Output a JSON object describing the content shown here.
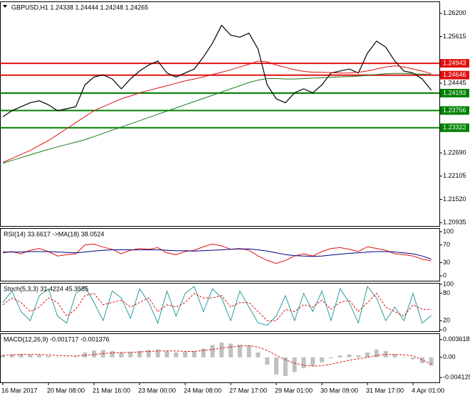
{
  "chart_data": [
    {
      "type": "line",
      "title": "GBPUSD,H1  1.24338 1.24444 1.24248 1.24265",
      "ylim": [
        1.2085,
        1.265
      ],
      "yticks": [
        {
          "value": 1.262,
          "label": "1.26200"
        },
        1.25615,
        1.24445,
        {
          "value": 1.2269,
          "label": "1.22690"
        },
        1.22105,
        {
          "value": 1.2152,
          "label": "1.21520"
        },
        1.20935
      ],
      "levels": [
        {
          "value": 1.24943,
          "color": "#e01010"
        },
        {
          "value": 1.24646,
          "color": "#e01010"
        },
        {
          "value": 1.24193,
          "color": "#008000"
        },
        {
          "value": 1.23756,
          "color": "#008000"
        },
        {
          "value": 1.23322,
          "color": "#008000"
        }
      ],
      "series": [
        {
          "color": "#000000",
          "values": [
            1.236,
            1.2375,
            1.2385,
            1.2395,
            1.24,
            1.239,
            1.2375,
            1.238,
            1.2385,
            1.244,
            1.246,
            1.2465,
            1.2455,
            1.243,
            1.2455,
            1.2475,
            1.249,
            1.25,
            1.247,
            1.246,
            1.247,
            1.248,
            1.251,
            1.2545,
            1.259,
            1.2565,
            1.256,
            1.257,
            1.253,
            1.244,
            1.2405,
            1.2395,
            1.242,
            1.243,
            1.242,
            1.244,
            1.247,
            1.2475,
            1.248,
            1.247,
            1.252,
            1.255,
            1.2535,
            1.25,
            1.2475,
            1.247,
            1.2455,
            1.2427
          ]
        },
        {
          "color": "#e01010",
          "values": [
            1.2245,
            1.2255,
            1.2265,
            1.2275,
            1.2288,
            1.23,
            1.2315,
            1.233,
            1.2345,
            1.236,
            1.2375,
            1.2385,
            1.2395,
            1.2405,
            1.2412,
            1.242,
            1.2426,
            1.2432,
            1.2438,
            1.2444,
            1.245,
            1.2455,
            1.246,
            1.2466,
            1.2472,
            1.2478,
            1.2485,
            1.2492,
            1.25,
            1.2498,
            1.249,
            1.2484,
            1.2478,
            1.2474,
            1.2472,
            1.2472,
            1.2471,
            1.247,
            1.247,
            1.2472,
            1.2475,
            1.248,
            1.2485,
            1.2488,
            1.2485,
            1.248,
            1.2475,
            1.2468
          ]
        },
        {
          "color": "#1a7a1a",
          "values": [
            1.2243,
            1.225,
            1.2257,
            1.2264,
            1.2271,
            1.2278,
            1.2284,
            1.229,
            1.2296,
            1.2302,
            1.231,
            1.2318,
            1.2326,
            1.2334,
            1.2342,
            1.235,
            1.2358,
            1.2366,
            1.2374,
            1.2382,
            1.239,
            1.2398,
            1.2406,
            1.2414,
            1.2422,
            1.243,
            1.2438,
            1.2446,
            1.2452,
            1.2456,
            1.2456,
            1.2455,
            1.2455,
            1.2456,
            1.2457,
            1.2458,
            1.2459,
            1.246,
            1.2461,
            1.2462,
            1.2464,
            1.2466,
            1.2468,
            1.2469,
            1.2469,
            1.2468,
            1.2467,
            1.2466
          ]
        }
      ]
    },
    {
      "type": "line",
      "title": "RSI(14) 33.6617 ->MA(18) 38.0524",
      "ylim": [
        -11,
        108
      ],
      "yticks": [
        100,
        70,
        30,
        0
      ],
      "series": [
        {
          "color": "#e01010",
          "values": [
            52,
            55,
            50,
            58,
            62,
            55,
            45,
            48,
            50,
            70,
            72,
            65,
            60,
            50,
            58,
            62,
            60,
            64,
            52,
            48,
            55,
            58,
            66,
            72,
            68,
            60,
            62,
            58,
            45,
            35,
            28,
            35,
            45,
            50,
            45,
            55,
            62,
            64,
            60,
            55,
            66,
            62,
            58,
            50,
            48,
            45,
            38,
            34
          ]
        },
        {
          "color": "#000080",
          "values": [
            54,
            54,
            54,
            55,
            55,
            55,
            54,
            53,
            52,
            54,
            56,
            58,
            59,
            59,
            59,
            59,
            59,
            59,
            58,
            57,
            57,
            56,
            57,
            58,
            59,
            60,
            61,
            61,
            59,
            56,
            52,
            48,
            46,
            45,
            44,
            45,
            47,
            49,
            51,
            52,
            54,
            55,
            55,
            54,
            52,
            50,
            45,
            38
          ]
        }
      ]
    },
    {
      "type": "line",
      "title": "Stoch(5,3,3) 31.4224 45.3585",
      "ylim": [
        -3,
        103
      ],
      "yticks": [
        100,
        80,
        20,
        0
      ],
      "series": [
        {
          "color": "#2a9d9d",
          "values": [
            60,
            85,
            40,
            20,
            75,
            90,
            30,
            15,
            80,
            95,
            60,
            20,
            85,
            70,
            25,
            90,
            60,
            15,
            85,
            30,
            80,
            95,
            40,
            90,
            70,
            20,
            85,
            50,
            15,
            10,
            30,
            75,
            20,
            80,
            40,
            85,
            20,
            90,
            60,
            15,
            95,
            70,
            20,
            50,
            20,
            80,
            15,
            31
          ]
        },
        {
          "color": "#e01010",
          "dashed": true,
          "values": [
            55,
            70,
            60,
            40,
            50,
            70,
            60,
            30,
            45,
            75,
            80,
            55,
            60,
            65,
            50,
            60,
            70,
            40,
            55,
            50,
            60,
            80,
            70,
            70,
            75,
            50,
            60,
            60,
            40,
            20,
            20,
            45,
            40,
            55,
            50,
            65,
            45,
            60,
            65,
            40,
            60,
            80,
            50,
            40,
            30,
            55,
            45,
            45
          ]
        }
      ]
    },
    {
      "type": "bar",
      "title": "MACD(12,26,9) -0.001717 -0.001376",
      "ylim": [
        -0.0051,
        0.0049
      ],
      "yticks": [
        0.003618,
        {
          "value": 0,
          "label": "0.00"
        },
        -0.004125
      ],
      "categories": [
        "16 Mar 2017",
        null,
        null,
        null,
        null,
        "20 Mar 08:00",
        null,
        null,
        null,
        null,
        "21 Mar 16:00",
        null,
        null,
        null,
        null,
        "23 Mar 00:00",
        null,
        null,
        null,
        null,
        "24 Mar 08:00",
        null,
        null,
        null,
        null,
        "27 Mar 17:00",
        null,
        null,
        null,
        null,
        "29 Mar 01:00",
        null,
        null,
        null,
        null,
        "30 Mar 09:00",
        null,
        null,
        null,
        null,
        "31 Mar 17:00",
        null,
        null,
        null,
        null,
        "4 Apr 01:00",
        null,
        null
      ],
      "series": [
        {
          "type": "bar",
          "color": "#c0c0c0",
          "values": [
            0.0005,
            0.0006,
            0.0007,
            0.0006,
            0.0005,
            0.0003,
            0.0001,
            0.0,
            0.0002,
            0.001,
            0.0014,
            0.0015,
            0.0013,
            0.001,
            0.0011,
            0.0013,
            0.0015,
            0.0016,
            0.0013,
            0.001,
            0.0011,
            0.0013,
            0.0018,
            0.0025,
            0.003,
            0.0028,
            0.0026,
            0.0024,
            0.001,
            -0.0015,
            -0.0035,
            -0.0038,
            -0.003,
            -0.0022,
            -0.0018,
            -0.001,
            -0.0002,
            0.0004,
            0.0006,
            0.0004,
            0.001,
            0.0016,
            0.0013,
            0.0006,
            0.0,
            -0.0004,
            -0.0012,
            -0.0017
          ]
        },
        {
          "type": "line",
          "color": "#e01010",
          "dashed": true,
          "values": [
            0.0004,
            0.0005,
            0.0006,
            0.0006,
            0.0006,
            0.0005,
            0.0004,
            0.0003,
            0.0003,
            0.0004,
            0.0006,
            0.0008,
            0.0009,
            0.001,
            0.001,
            0.0011,
            0.0012,
            0.0013,
            0.0013,
            0.0013,
            0.0012,
            0.0012,
            0.0014,
            0.0016,
            0.0019,
            0.0021,
            0.0023,
            0.0024,
            0.0021,
            0.0014,
            0.0004,
            -0.0005,
            -0.0012,
            -0.0016,
            -0.0018,
            -0.0017,
            -0.0014,
            -0.001,
            -0.0006,
            -0.0003,
            0.0,
            0.0004,
            0.0006,
            0.0006,
            0.0005,
            0.0003,
            -0.0005,
            -0.0014
          ]
        }
      ]
    }
  ]
}
